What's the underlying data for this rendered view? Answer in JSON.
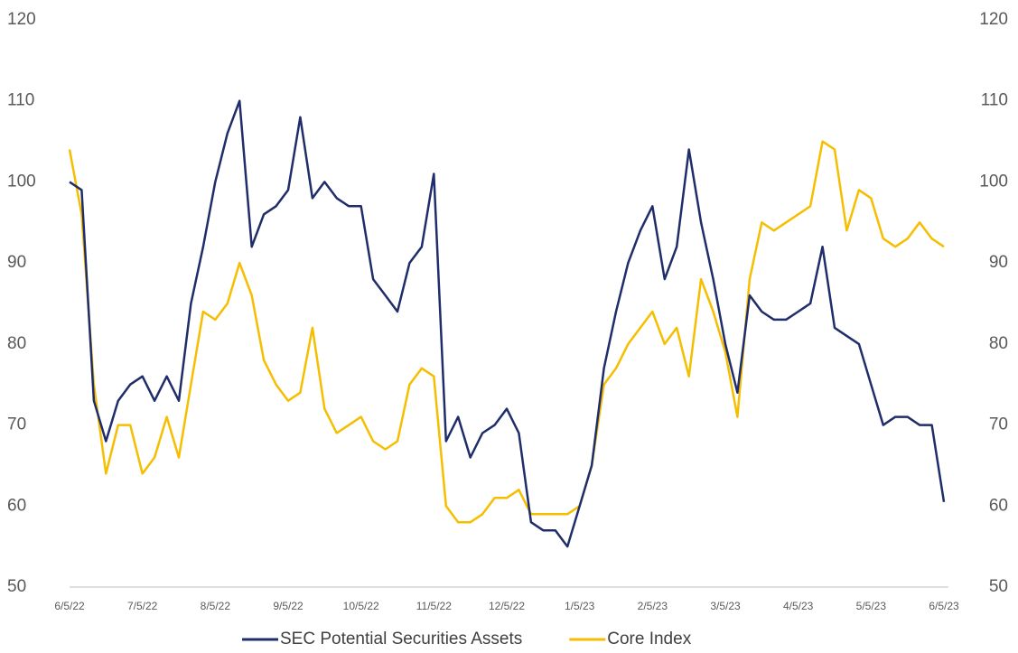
{
  "chart_data": {
    "type": "line",
    "categories": [
      "6/5/22",
      null,
      null,
      null,
      null,
      null,
      "7/5/22",
      null,
      null,
      null,
      null,
      null,
      "8/5/22",
      null,
      null,
      null,
      null,
      null,
      "9/5/22",
      null,
      null,
      null,
      null,
      null,
      "10/5/22",
      null,
      null,
      null,
      null,
      null,
      "11/5/22",
      null,
      null,
      null,
      null,
      null,
      "12/5/22",
      null,
      null,
      null,
      null,
      null,
      "1/5/23",
      null,
      null,
      null,
      null,
      null,
      "2/5/23",
      null,
      null,
      null,
      null,
      null,
      "3/5/23",
      null,
      null,
      null,
      null,
      null,
      "4/5/23",
      null,
      null,
      null,
      null,
      null,
      "5/5/23",
      null,
      null,
      null,
      null,
      null,
      "6/5/23"
    ],
    "series": [
      {
        "name": "SEC Potential Securities Assets",
        "color": "#1f2d6b",
        "values": [
          100,
          99,
          73,
          68,
          73,
          75,
          76,
          73,
          76,
          73,
          85,
          92,
          100,
          106,
          110,
          92,
          96,
          97,
          99,
          108,
          98,
          100,
          98,
          97,
          97,
          88,
          86,
          84,
          90,
          92,
          101,
          68,
          71,
          66,
          69,
          70,
          72,
          69,
          58,
          57,
          57,
          55,
          60,
          65,
          77,
          84,
          90,
          94,
          97,
          88,
          92,
          104,
          95,
          88,
          80,
          74,
          86,
          84,
          83,
          83,
          84,
          85,
          92,
          82,
          81,
          80,
          75,
          70,
          71,
          71,
          70,
          70,
          60.5
        ]
      },
      {
        "name": "Core Index",
        "color": "#f6be00",
        "axis": "y2",
        "values": [
          104,
          96,
          75,
          64,
          70,
          70,
          64,
          66,
          71,
          66,
          75,
          84,
          83,
          85,
          90,
          86,
          78,
          75,
          73,
          74,
          82,
          72,
          69,
          70,
          71,
          68,
          67,
          68,
          75,
          77,
          76,
          60,
          58,
          58,
          59,
          61,
          61,
          62,
          59,
          59,
          59,
          59,
          60,
          65,
          75,
          77,
          80,
          82,
          84,
          80,
          82,
          76,
          88,
          84,
          79,
          71,
          88,
          95,
          94,
          95,
          96,
          97,
          105,
          104,
          94,
          99,
          98,
          93,
          92,
          93,
          95,
          93,
          92
        ]
      }
    ],
    "ylim": [
      50,
      120
    ],
    "yticks": [
      50,
      60,
      70,
      80,
      90,
      100,
      110,
      120
    ],
    "y2lim": [
      50,
      120
    ],
    "y2ticks": [
      50,
      60,
      70,
      80,
      90,
      100,
      110,
      120
    ],
    "legend": "bottom"
  }
}
